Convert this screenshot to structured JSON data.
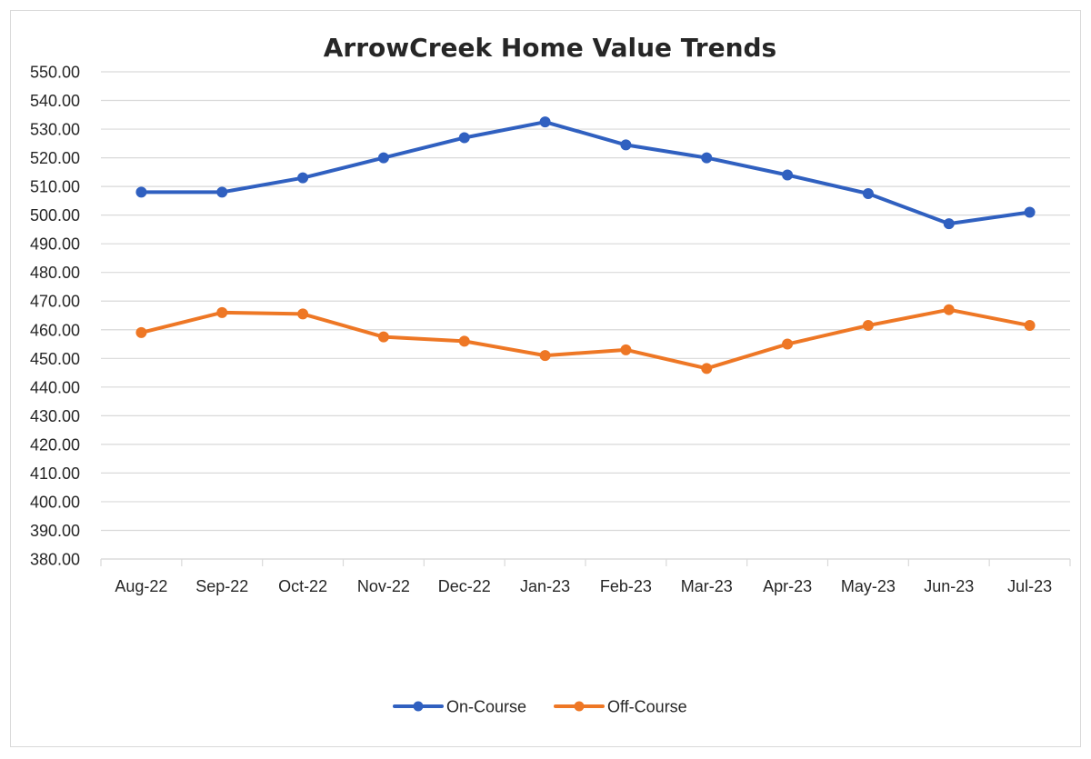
{
  "chart_data": {
    "type": "line",
    "title": "ArrowCreek Home Value Trends",
    "xlabel": "",
    "ylabel": "",
    "categories": [
      "Aug-22",
      "Sep-22",
      "Oct-22",
      "Nov-22",
      "Dec-22",
      "Jan-23",
      "Feb-23",
      "Mar-23",
      "Apr-23",
      "May-23",
      "Jun-23",
      "Jul-23"
    ],
    "ylim": [
      380,
      550
    ],
    "ytick_step": 10,
    "ytick_labels": [
      "550.00",
      "540.00",
      "530.00",
      "520.00",
      "510.00",
      "500.00",
      "490.00",
      "480.00",
      "470.00",
      "460.00",
      "450.00",
      "440.00",
      "430.00",
      "420.00",
      "410.00",
      "400.00",
      "390.00",
      "380.00"
    ],
    "grid": true,
    "legend_position": "bottom",
    "series": [
      {
        "name": "On-Course",
        "color": "#3060C0",
        "values": [
          508,
          508,
          513,
          520,
          527,
          532.5,
          524.5,
          520,
          514,
          507.5,
          497,
          501
        ]
      },
      {
        "name": "Off-Course",
        "color": "#EE7725",
        "values": [
          459,
          466,
          465.5,
          457.5,
          456,
          451,
          453,
          446.5,
          455,
          461.5,
          467,
          461.5
        ]
      }
    ]
  }
}
